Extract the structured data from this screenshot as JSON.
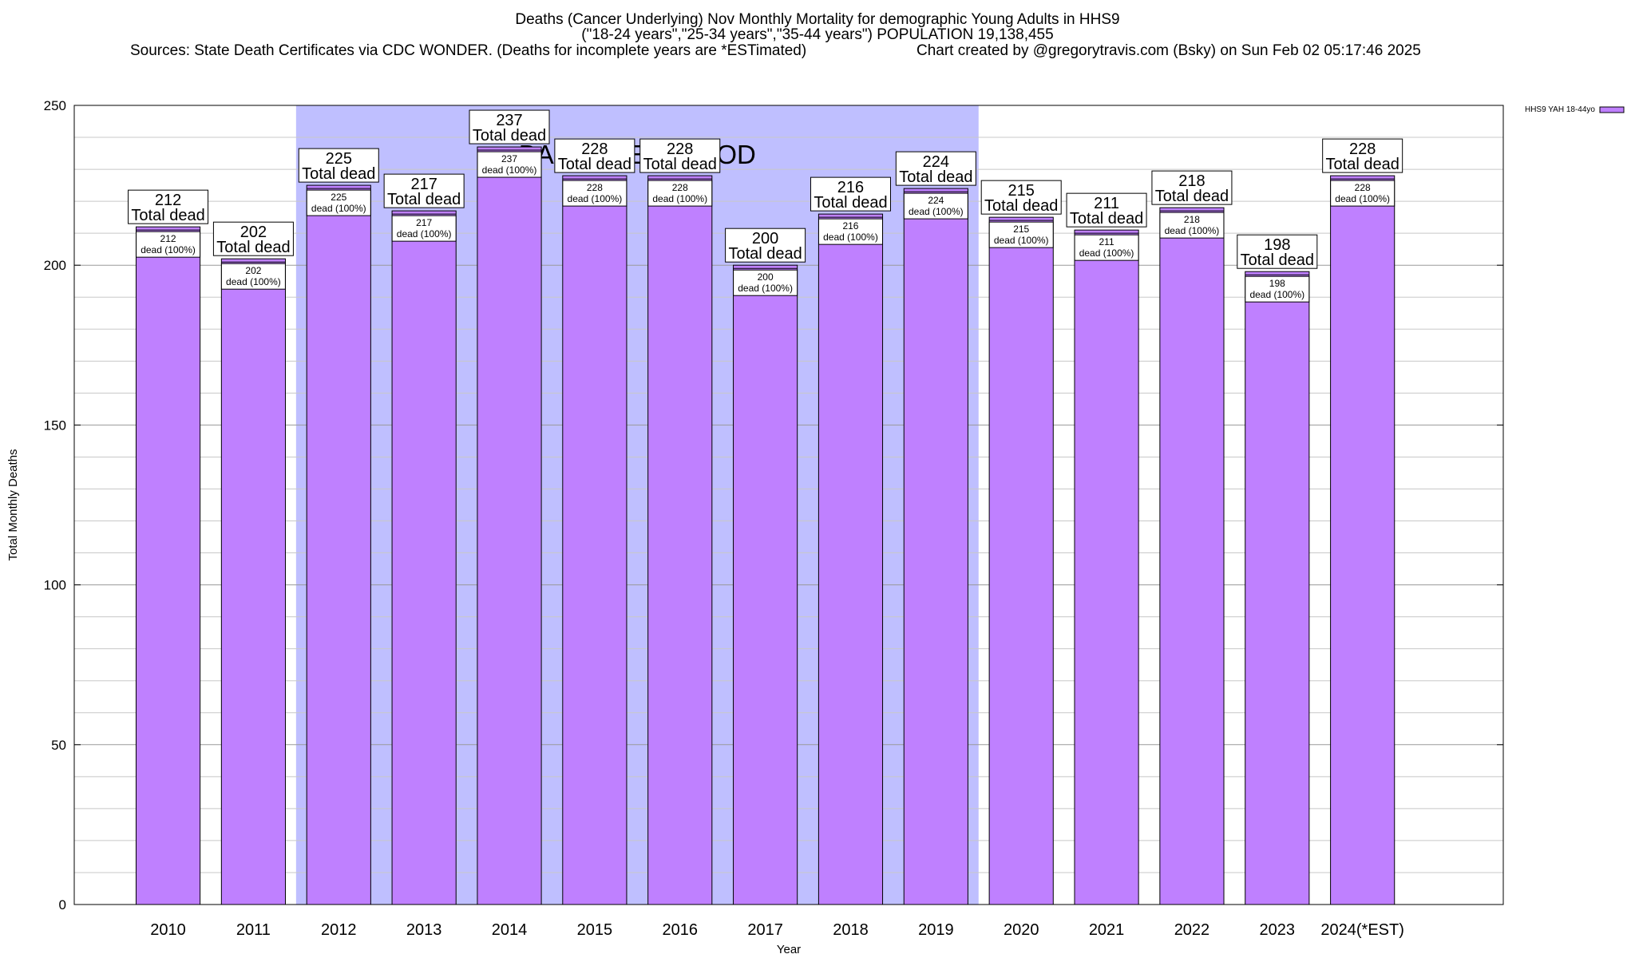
{
  "header": {
    "title": "Deaths (Cancer Underlying) Nov Monthly Mortality for demographic Young Adults in HHS9",
    "subtitle": "(\"18-24 years\",\"25-34 years\",\"35-44 years\") POPULATION 19,138,455",
    "sources": "Sources: State Death Certificates via CDC WONDER. (Deaths for incomplete years are *ESTimated)",
    "credit": "Chart created by @gregorytravis.com (Bsky) on Sun Feb 02 05:17:46 2025"
  },
  "chart_data": {
    "type": "bar",
    "xlabel": "Year",
    "ylabel": "Total Monthly Deaths",
    "ylim": [
      0,
      250
    ],
    "yticks": [
      0,
      50,
      100,
      150,
      200,
      250
    ],
    "grid": true,
    "legend_position": "top-right",
    "categories": [
      "2010",
      "2011",
      "2012",
      "2013",
      "2014",
      "2015",
      "2016",
      "2017",
      "2018",
      "2019",
      "2020",
      "2021",
      "2022",
      "2023",
      "2024(*EST)"
    ],
    "series": [
      {
        "name": "HHS9 YAH 18-44yo",
        "color": "#bf80ff",
        "values": [
          212,
          202,
          225,
          217,
          237,
          228,
          228,
          200,
          216,
          224,
          215,
          211,
          218,
          198,
          228
        ]
      }
    ],
    "total_label_suffix": "Total dead",
    "inner_label_suffix": "dead (100%)",
    "baseline": {
      "label": "BASELINE PERIOD",
      "start_category": "2012",
      "end_category": "2019",
      "color": "#bfbfff"
    }
  }
}
